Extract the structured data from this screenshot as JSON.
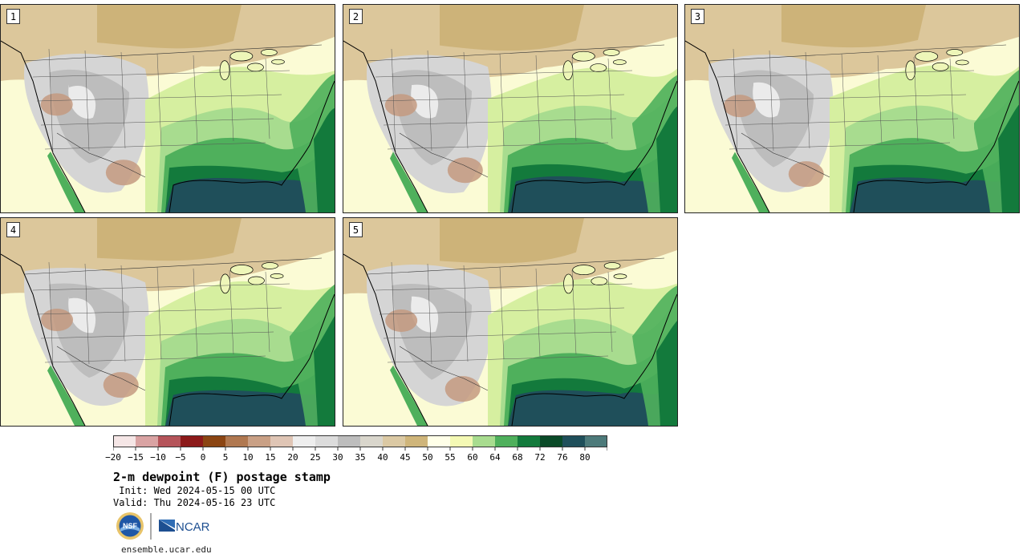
{
  "product": {
    "title": "2-m dewpoint (F) postage stamp",
    "init": " Init: Wed 2024-05-15 00 UTC",
    "valid": "Valid: Thu 2024-05-16 23 UTC",
    "website": "ensemble.ucar.edu"
  },
  "panels": [
    {
      "member": "1"
    },
    {
      "member": "2"
    },
    {
      "member": "3"
    },
    {
      "member": "4"
    },
    {
      "member": "5"
    }
  ],
  "colorbar": {
    "colors": [
      "#f5e6e6",
      "#d9a3a3",
      "#b5545a",
      "#8c1a1a",
      "#8b4513",
      "#b07850",
      "#c9a085",
      "#dfc5b5",
      "#eeeeee",
      "#dcdcdc",
      "#bdbdbd",
      "#d9d6cc",
      "#dbc9a4",
      "#cfb57a",
      "#ffffe8",
      "#f4f9b4",
      "#a8dc8f",
      "#4fb05c",
      "#137a3c",
      "#0a4a28",
      "#1f4f5a",
      "#4d7a7a"
    ],
    "labels": [
      "−20",
      "−15",
      "−10",
      "−5",
      "0",
      "5",
      "10",
      "15",
      "20",
      "25",
      "30",
      "35",
      "40",
      "45",
      "50",
      "55",
      "60",
      "64",
      "68",
      "72",
      "76",
      "80"
    ]
  },
  "logos": {
    "nsf_text": "NSF",
    "ncar_text": "NCAR"
  }
}
